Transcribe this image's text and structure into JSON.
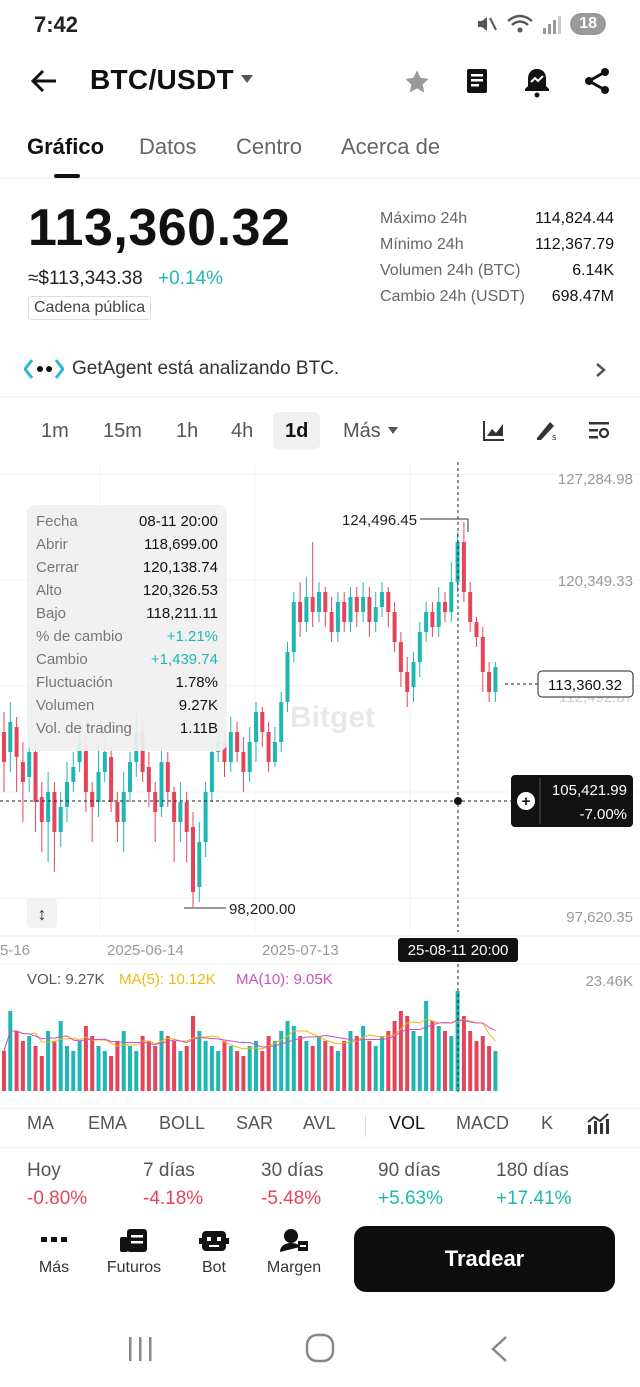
{
  "status": {
    "time": "7:42",
    "battery": "18"
  },
  "header": {
    "pair": "BTC/USDT"
  },
  "tabs": [
    "Gráfico",
    "Datos",
    "Centro",
    "Acerca de"
  ],
  "price": {
    "last": "113,360.32",
    "usd": "≈$113,343.38",
    "change": "+0.14%",
    "chain": "Cadena pública"
  },
  "stats": [
    {
      "label": "Máximo 24h",
      "value": "114,824.44"
    },
    {
      "label": "Mínimo 24h",
      "value": "112,367.79"
    },
    {
      "label": "Volumen 24h (BTC)",
      "value": "6.14K"
    },
    {
      "label": "Cambio 24h (USDT)",
      "value": "698.47M"
    }
  ],
  "agent": {
    "text": "GetAgent está analizando BTC."
  },
  "intervals": [
    "1m",
    "15m",
    "1h",
    "4h",
    "1d",
    "Más"
  ],
  "chart": {
    "y_ticks": [
      "127,284.98",
      "120,349.33",
      "97,620.35"
    ],
    "hidden_tick": "112,492.87",
    "x_ticks": [
      "5-16",
      "2025-06-14",
      "2025-07-13"
    ],
    "crosshair_time": "25-08-11 20:00",
    "crosshair_price": "105,421.99",
    "crosshair_pct": "-7.00%",
    "last_price": "113,360.32",
    "high_label": "124,496.45",
    "low_label": "98,200.00",
    "watermark": "Bitget",
    "tooltip": [
      {
        "k": "Fecha",
        "v": "08-11 20:00",
        "c": "#111"
      },
      {
        "k": "Abrir",
        "v": "118,699.00",
        "c": "#111"
      },
      {
        "k": "Cerrar",
        "v": "120,138.74",
        "c": "#111"
      },
      {
        "k": "Alto",
        "v": "120,326.53",
        "c": "#111"
      },
      {
        "k": "Bajo",
        "v": "118,211.11",
        "c": "#111"
      },
      {
        "k": "% de cambio",
        "v": "+1.21%",
        "c": "#1eb7b4"
      },
      {
        "k": "Cambio",
        "v": "+1,439.74",
        "c": "#1eb7b4"
      },
      {
        "k": "Fluctuación",
        "v": "1.78%",
        "c": "#111"
      },
      {
        "k": "Volumen",
        "v": "9.27K",
        "c": "#111"
      },
      {
        "k": "Vol. de trading",
        "v": "1.11B",
        "c": "#111"
      }
    ],
    "vol_label": "VOL: 9.27K",
    "ma5_label": "MA(5): 10.12K",
    "ma10_label": "MA(10): 9.05K",
    "vol_max": "23.46K"
  },
  "indicators": [
    "MA",
    "EMA",
    "BOLL",
    "SAR",
    "AVL",
    "VOL",
    "MACD",
    "K"
  ],
  "performance": [
    {
      "label": "Hoy",
      "value": "-0.80%",
      "dir": "neg"
    },
    {
      "label": "7 días",
      "value": "-4.18%",
      "dir": "neg"
    },
    {
      "label": "30 días",
      "value": "-5.48%",
      "dir": "neg"
    },
    {
      "label": "90 días",
      "value": "+5.63%",
      "dir": "pos"
    },
    {
      "label": "180 días",
      "value": "+17.41%",
      "dir": "pos"
    }
  ],
  "bottom_nav": [
    "Más",
    "Futuros",
    "Bot",
    "Margen"
  ],
  "trade_label": "Tradear",
  "colors": {
    "up": "#1eb7b4",
    "down": "#e5455a",
    "ma5": "#f0b90b",
    "ma10": "#d04fc3"
  }
}
